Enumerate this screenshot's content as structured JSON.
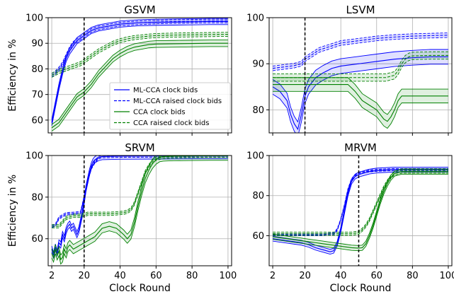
{
  "figure": {
    "shared_xlabel": "Clock Round",
    "shared_ylabel": "Efficiency in %"
  },
  "legend": {
    "entries": [
      {
        "label": "ML-CCA clock bids",
        "color": "#0000ff",
        "dash": "solid"
      },
      {
        "label": "ML-CCA raised clock bids",
        "color": "#0000ff",
        "dash": "dashed"
      },
      {
        "label": "CCA clock bids",
        "color": "#008000",
        "dash": "solid"
      },
      {
        "label": "CCA raised clock bids",
        "color": "#008000",
        "dash": "dashed"
      }
    ],
    "placement": "lower-right of GSVM panel"
  },
  "colors": {
    "ml_cca": "#0000ff",
    "cca": "#008000",
    "vline": "#000000",
    "grid": "#b0b0b0"
  },
  "chart_data": [
    {
      "type": "line",
      "title": "GSVM",
      "xlabel": "",
      "ylabel": "Efficiency in %",
      "xlim": [
        0,
        102
      ],
      "ylim": [
        55,
        100
      ],
      "xticks": [
        2,
        20,
        40,
        60,
        80,
        100
      ],
      "yticks": [
        60,
        70,
        80,
        90,
        100
      ],
      "grid": true,
      "vline_x": 20,
      "series": [
        {
          "name": "ML-CCA clock bids",
          "color": "#0000ff",
          "dash": "solid",
          "x": [
            2,
            4,
            6,
            8,
            10,
            12,
            14,
            16,
            18,
            20,
            24,
            28,
            32,
            36,
            40,
            50,
            60,
            70,
            80,
            90,
            100
          ],
          "y": [
            59,
            66,
            73,
            79,
            84,
            87,
            89,
            91,
            92,
            93,
            95,
            96,
            96.5,
            97,
            97.5,
            98,
            98.2,
            98.3,
            98.4,
            98.5,
            98.5
          ],
          "band": 1.2
        },
        {
          "name": "ML-CCA raised clock bids",
          "color": "#0000ff",
          "dash": "dashed",
          "x": [
            2,
            4,
            6,
            8,
            10,
            12,
            14,
            16,
            18,
            20,
            24,
            28,
            32,
            36,
            40,
            50,
            60,
            70,
            80,
            90,
            100
          ],
          "y": [
            77.5,
            78.5,
            80,
            82,
            85,
            88,
            90,
            91,
            92,
            93,
            95,
            96,
            96.5,
            97,
            97.5,
            98,
            98.3,
            98.5,
            98.6,
            98.7,
            98.7
          ],
          "band": 0.7
        },
        {
          "name": "CCA clock bids",
          "color": "#008000",
          "dash": "solid",
          "x": [
            2,
            4,
            6,
            8,
            10,
            12,
            14,
            16,
            18,
            20,
            24,
            28,
            32,
            36,
            40,
            44,
            48,
            52,
            56,
            60,
            70,
            80,
            90,
            100
          ],
          "y": [
            57,
            58,
            59,
            61,
            63,
            65,
            67,
            69,
            70,
            71,
            74,
            78,
            81,
            84,
            86,
            87.5,
            88.5,
            89,
            89.5,
            89.7,
            89.8,
            89.9,
            90,
            90
          ],
          "band": 1.3
        },
        {
          "name": "CCA raised clock bids",
          "color": "#008000",
          "dash": "dashed",
          "x": [
            2,
            6,
            10,
            14,
            18,
            20,
            24,
            28,
            32,
            36,
            40,
            44,
            48,
            52,
            56,
            60,
            70,
            80,
            90,
            100
          ],
          "y": [
            77.5,
            79,
            80,
            81,
            82,
            83,
            85,
            87,
            88.5,
            90,
            91,
            91.7,
            92.2,
            92.5,
            92.8,
            93,
            93.2,
            93.3,
            93.4,
            93.5
          ],
          "band": 0.8
        }
      ]
    },
    {
      "type": "line",
      "title": "LSVM",
      "xlabel": "",
      "ylabel": "",
      "xlim": [
        0,
        102
      ],
      "ylim": [
        75,
        100
      ],
      "xticks": [
        2,
        20,
        40,
        60,
        80,
        100
      ],
      "yticks": [
        80,
        90,
        100
      ],
      "grid": true,
      "vline_x": 20,
      "series": [
        {
          "name": "ML-CCA clock bids",
          "color": "#0000ff",
          "dash": "solid",
          "x": [
            2,
            6,
            10,
            12,
            14,
            16,
            18,
            20,
            22,
            26,
            30,
            35,
            40,
            50,
            60,
            70,
            80,
            90,
            100
          ],
          "y": [
            85,
            84,
            82,
            79,
            77,
            75.8,
            79,
            83,
            85,
            87,
            88,
            89,
            89.5,
            90,
            90.5,
            91,
            91.3,
            91.5,
            91.5
          ],
          "band": 1.6
        },
        {
          "name": "ML-CCA raised clock bids",
          "color": "#0000ff",
          "dash": "dashed",
          "x": [
            2,
            6,
            10,
            14,
            18,
            20,
            24,
            28,
            32,
            36,
            40,
            50,
            60,
            70,
            80,
            90,
            100
          ],
          "y": [
            89,
            89.2,
            89.4,
            89.6,
            90,
            91,
            92,
            93,
            93.5,
            94,
            94.5,
            95,
            95.5,
            95.8,
            96,
            96.1,
            96.2
          ],
          "band": 0.5
        },
        {
          "name": "CCA clock bids",
          "color": "#008000",
          "dash": "solid",
          "x": [
            2,
            10,
            20,
            30,
            40,
            44,
            48,
            52,
            56,
            60,
            64,
            66,
            68,
            70,
            72,
            74,
            76,
            78,
            80,
            90,
            100
          ],
          "y": [
            85.5,
            85.5,
            85.5,
            85.5,
            85.5,
            85.5,
            84,
            82,
            81,
            80,
            78,
            77.5,
            78.5,
            80,
            82,
            83,
            83,
            83,
            83,
            83,
            83
          ],
          "band": 1.5
        },
        {
          "name": "CCA raised clock bids",
          "color": "#008000",
          "dash": "dashed",
          "x": [
            2,
            10,
            20,
            30,
            40,
            50,
            60,
            65,
            70,
            72,
            74,
            76,
            78,
            80,
            90,
            100
          ],
          "y": [
            87,
            87,
            87,
            87,
            87,
            87,
            87,
            87,
            87.5,
            88.5,
            90,
            91,
            91.5,
            91.7,
            91.8,
            91.8
          ],
          "band": 0.8
        }
      ]
    },
    {
      "type": "line",
      "title": "SRVM",
      "xlabel": "Clock Round",
      "ylabel": "Efficiency in %",
      "xlim": [
        0,
        102
      ],
      "ylim": [
        47,
        100
      ],
      "xticks": [
        2,
        20,
        40,
        60,
        80,
        100
      ],
      "yticks": [
        60,
        80,
        100
      ],
      "grid": true,
      "vline_x": 20,
      "series": [
        {
          "name": "ML-CCA clock bids",
          "color": "#0000ff",
          "dash": "solid",
          "x": [
            2,
            3,
            4,
            5,
            6,
            7,
            8,
            9,
            10,
            11,
            12,
            13,
            14,
            15,
            16,
            17,
            18,
            19,
            20,
            21,
            22,
            23,
            24,
            25,
            26,
            28,
            30,
            40,
            60,
            80,
            100
          ],
          "y": [
            55,
            52,
            56,
            53,
            58,
            57,
            62,
            60,
            64,
            66,
            67,
            65,
            66,
            64,
            62,
            64,
            68,
            72,
            78,
            84,
            88,
            92,
            95,
            97,
            98,
            99,
            99.5,
            99.7,
            99.8,
            99.9,
            99.9
          ],
          "band": 1.5
        },
        {
          "name": "ML-CCA raised clock bids",
          "color": "#0000ff",
          "dash": "dashed",
          "x": [
            2,
            4,
            6,
            8,
            10,
            14,
            18,
            20,
            22,
            24,
            26,
            28,
            30,
            40,
            60,
            80,
            100
          ],
          "y": [
            66,
            66.5,
            70,
            71,
            72,
            72.2,
            72.5,
            80,
            88,
            94,
            97,
            99,
            99.5,
            99.7,
            99.8,
            99.9,
            99.9
          ],
          "band": 0.6
        },
        {
          "name": "CCA clock bids",
          "color": "#008000",
          "dash": "solid",
          "x": [
            2,
            3,
            4,
            5,
            6,
            7,
            8,
            9,
            10,
            11,
            12,
            13,
            14,
            16,
            18,
            20,
            22,
            24,
            26,
            28,
            30,
            34,
            38,
            42,
            44,
            46,
            48,
            50,
            52,
            54,
            56,
            58,
            60,
            62,
            64,
            66,
            70,
            80,
            90,
            100
          ],
          "y": [
            53,
            51,
            55,
            52,
            54,
            50,
            51,
            55,
            53,
            56,
            57,
            56,
            55,
            56,
            57,
            58,
            59,
            60,
            61,
            63,
            65,
            66,
            65,
            62,
            60,
            62,
            68,
            76,
            83,
            89,
            93,
            96,
            98,
            99.2,
            99.5,
            99.6,
            99.7,
            99.8,
            99.9,
            99.9
          ],
          "band": 2.2
        },
        {
          "name": "CCA raised clock bids",
          "color": "#008000",
          "dash": "dashed",
          "x": [
            2,
            6,
            10,
            14,
            18,
            20,
            22,
            26,
            30,
            34,
            38,
            42,
            44,
            46,
            48,
            50,
            52,
            54,
            56,
            58,
            60,
            64,
            70,
            80,
            90,
            100
          ],
          "y": [
            66,
            66,
            70,
            71,
            71,
            71.5,
            72,
            72,
            72,
            72,
            72.2,
            72.5,
            73,
            74,
            77,
            82,
            87,
            92,
            95,
            97,
            98.5,
            99.3,
            99.6,
            99.8,
            99.9,
            99.9
          ],
          "band": 0.8
        }
      ]
    },
    {
      "type": "line",
      "title": "MRVM",
      "xlabel": "Clock Round",
      "ylabel": "",
      "xlim": [
        0,
        102
      ],
      "ylim": [
        45,
        100
      ],
      "xticks": [
        2,
        20,
        40,
        60,
        80,
        100
      ],
      "yticks": [
        60,
        80,
        100
      ],
      "grid": true,
      "vline_x": 50,
      "series": [
        {
          "name": "ML-CCA clock bids",
          "color": "#0000ff",
          "dash": "solid",
          "x": [
            2,
            6,
            10,
            14,
            18,
            22,
            26,
            30,
            34,
            36,
            38,
            40,
            42,
            44,
            46,
            48,
            50,
            52,
            54,
            56,
            60,
            70,
            80,
            90,
            100
          ],
          "y": [
            58.5,
            58,
            57.5,
            57,
            56.5,
            55.5,
            54,
            53,
            52,
            52.5,
            56,
            63,
            72,
            81,
            87,
            89.5,
            90.5,
            91,
            91.5,
            92,
            92.5,
            93,
            93,
            93,
            93
          ],
          "band": 1.2
        },
        {
          "name": "ML-CCA raised clock bids",
          "color": "#0000ff",
          "dash": "dashed",
          "x": [
            2,
            10,
            20,
            30,
            36,
            38,
            40,
            42,
            44,
            46,
            48,
            50,
            52,
            54,
            56,
            60,
            70,
            80,
            90,
            100
          ],
          "y": [
            60.5,
            60.5,
            60.5,
            60.5,
            61,
            63,
            68,
            75,
            83,
            88,
            90,
            91,
            91.5,
            92,
            92.3,
            92.6,
            93,
            93,
            93,
            93
          ],
          "band": 0.5
        },
        {
          "name": "CCA clock bids",
          "color": "#008000",
          "dash": "solid",
          "x": [
            2,
            6,
            10,
            14,
            18,
            22,
            26,
            30,
            34,
            38,
            42,
            46,
            50,
            52,
            54,
            56,
            58,
            60,
            62,
            64,
            66,
            68,
            70,
            72,
            74,
            76,
            80,
            90,
            100
          ],
          "y": [
            59.5,
            59,
            58.5,
            58,
            57.5,
            57,
            56.5,
            56,
            55.5,
            55,
            54.5,
            54,
            53.8,
            54,
            56,
            60,
            65,
            71,
            77,
            82,
            86,
            89,
            91,
            91.5,
            92,
            92,
            92,
            92,
            92
          ],
          "band": 1.3
        },
        {
          "name": "CCA raised clock bids",
          "color": "#008000",
          "dash": "dashed",
          "x": [
            2,
            10,
            20,
            30,
            40,
            46,
            50,
            52,
            54,
            56,
            58,
            60,
            62,
            64,
            66,
            68,
            70,
            72,
            74,
            76,
            80,
            90,
            100
          ],
          "y": [
            61,
            61,
            61,
            61,
            61,
            61,
            61.5,
            63,
            65,
            68,
            72,
            76,
            80,
            84,
            87,
            89.5,
            91,
            91.5,
            92,
            92,
            92,
            92,
            92
          ],
          "band": 0.8
        }
      ]
    }
  ]
}
